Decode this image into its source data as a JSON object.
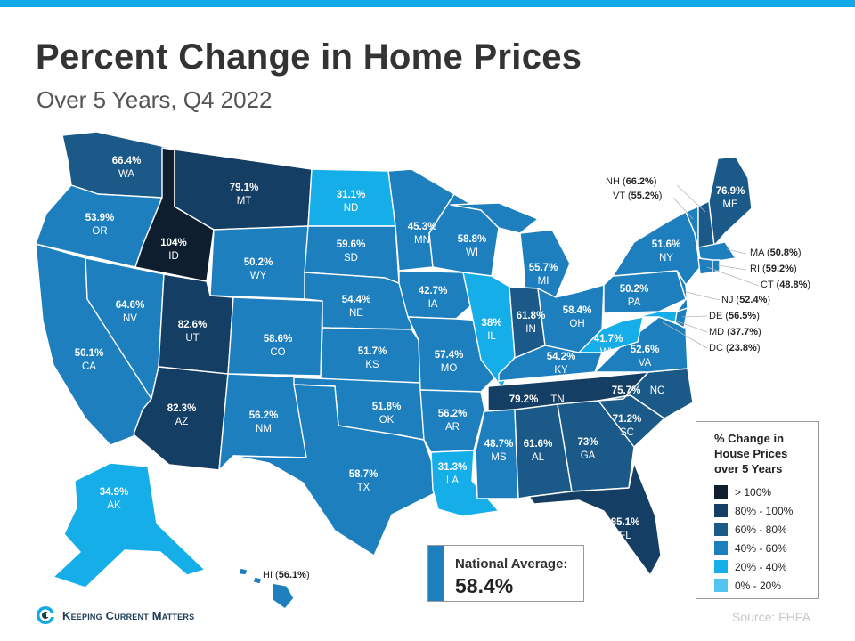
{
  "header": {
    "title": "Percent Change in Home Prices",
    "subtitle": "Over 5 Years, Q4 2022"
  },
  "colors": {
    "top_bar": "#12a9e6",
    "gt100": "#0f1e2e",
    "b80_100": "#143e63",
    "b60_80": "#1b5a88",
    "b40_60": "#1e7fbf",
    "b20_40": "#16aee9",
    "b0_20": "#53c4f0"
  },
  "states": {
    "WA": {
      "name": "WA",
      "value": "66.4%"
    },
    "OR": {
      "name": "OR",
      "value": "53.9%"
    },
    "CA": {
      "name": "CA",
      "value": "50.1%"
    },
    "NV": {
      "name": "NV",
      "value": "64.6%"
    },
    "ID": {
      "name": "ID",
      "value": "104%"
    },
    "MT": {
      "name": "MT",
      "value": "79.1%"
    },
    "WY": {
      "name": "WY",
      "value": "50.2%"
    },
    "UT": {
      "name": "UT",
      "value": "82.6%"
    },
    "AZ": {
      "name": "AZ",
      "value": "82.3%"
    },
    "CO": {
      "name": "CO",
      "value": "58.6%"
    },
    "NM": {
      "name": "NM",
      "value": "56.2%"
    },
    "ND": {
      "name": "ND",
      "value": "31.1%"
    },
    "SD": {
      "name": "SD",
      "value": "59.6%"
    },
    "NE": {
      "name": "NE",
      "value": "54.4%"
    },
    "KS": {
      "name": "KS",
      "value": "51.7%"
    },
    "OK": {
      "name": "OK",
      "value": "51.8%"
    },
    "TX": {
      "name": "TX",
      "value": "58.7%"
    },
    "MN": {
      "name": "MN",
      "value": "45.3%"
    },
    "IA": {
      "name": "IA",
      "value": "42.7%"
    },
    "MO": {
      "name": "MO",
      "value": "57.4%"
    },
    "AR": {
      "name": "AR",
      "value": "56.2%"
    },
    "LA": {
      "name": "LA",
      "value": "31.3%"
    },
    "WI": {
      "name": "WI",
      "value": "58.8%"
    },
    "IL": {
      "name": "IL",
      "value": "38%"
    },
    "MI": {
      "name": "MI",
      "value": "55.7%"
    },
    "IN": {
      "name": "IN",
      "value": "61.8%"
    },
    "OH": {
      "name": "OH",
      "value": "58.4%"
    },
    "KY": {
      "name": "KY",
      "value": "54.2%"
    },
    "TN": {
      "name": "TN",
      "value": "79.2%"
    },
    "MS": {
      "name": "MS",
      "value": "48.7%"
    },
    "AL": {
      "name": "AL",
      "value": "61.6%"
    },
    "GA": {
      "name": "GA",
      "value": "73%"
    },
    "FL": {
      "name": "FL",
      "value": "85.1%"
    },
    "SC": {
      "name": "SC",
      "value": "71.2%"
    },
    "NC": {
      "name": "NC",
      "value": "75.7%"
    },
    "VA": {
      "name": "VA",
      "value": "52.6%"
    },
    "WV": {
      "name": "WV",
      "value": "41.7%"
    },
    "PA": {
      "name": "PA",
      "value": "50.2%"
    },
    "NY": {
      "name": "NY",
      "value": "51.6%"
    },
    "ME": {
      "name": "ME",
      "value": "76.9%"
    },
    "AK": {
      "name": "AK",
      "value": "34.9%"
    }
  },
  "callouts": {
    "NH": {
      "code": "NH",
      "value": "66.2%"
    },
    "VT": {
      "code": "VT",
      "value": "55.2%"
    },
    "MA": {
      "code": "MA",
      "value": "50.8%"
    },
    "RI": {
      "code": "RI",
      "value": "59.2%"
    },
    "CT": {
      "code": "CT",
      "value": "48.8%"
    },
    "NJ": {
      "code": "NJ",
      "value": "52.4%"
    },
    "DE": {
      "code": "DE",
      "value": "56.5%"
    },
    "MD": {
      "code": "MD",
      "value": "37.7%"
    },
    "DC": {
      "code": "DC",
      "value": "23.8%"
    },
    "HI": {
      "code": "HI",
      "value": "56.1%"
    }
  },
  "legend": {
    "title": "% Change in House Prices over 5 Years",
    "items": [
      {
        "label": "> 100%"
      },
      {
        "label": "80% - 100%"
      },
      {
        "label": "60% - 80%"
      },
      {
        "label": "40% - 60%"
      },
      {
        "label": "20% - 40%"
      },
      {
        "label": "0% - 20%"
      }
    ]
  },
  "national_average": {
    "label": "National Average:",
    "value": "58.4%"
  },
  "brand": {
    "name": "Keeping Current Matters"
  },
  "source": "Source: FHFA"
}
